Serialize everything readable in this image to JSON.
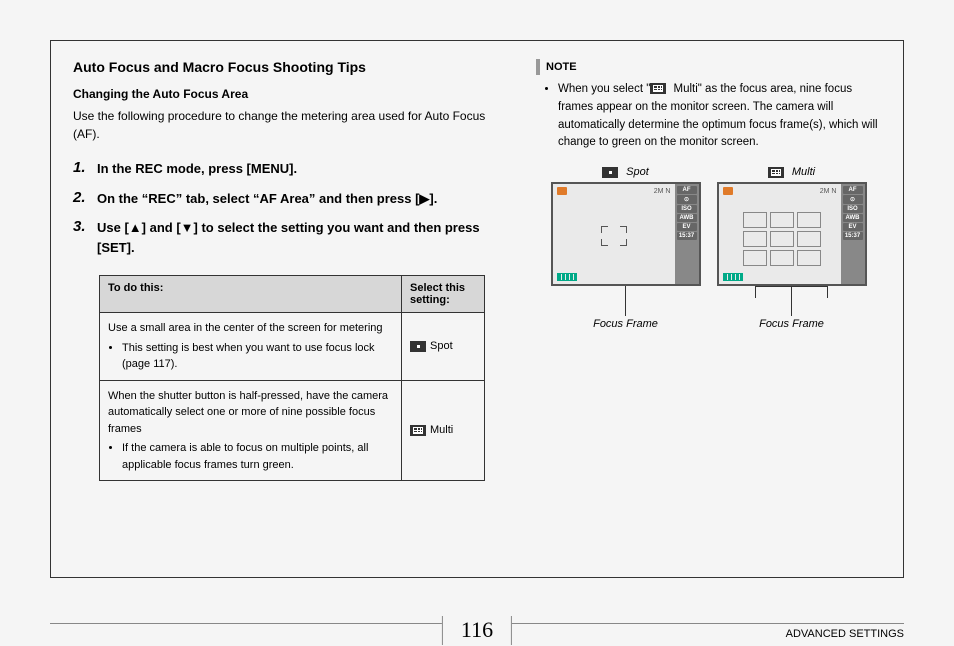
{
  "section_title": "Auto Focus and Macro Focus Shooting Tips",
  "sub_title": "Changing the Auto Focus Area",
  "intro": "Use the following procedure to change the metering area used for Auto Focus (AF).",
  "steps": [
    {
      "num": "1.",
      "txt": "In the REC mode, press [MENU]."
    },
    {
      "num": "2.",
      "txt": "On the “REC” tab, select “AF Area” and then press [▶]."
    },
    {
      "num": "3.",
      "txt": "Use [▲] and [▼] to select the setting you want and then press [SET]."
    }
  ],
  "table": {
    "head_todo": "To do this:",
    "head_setting": "Select this setting:",
    "rows": [
      {
        "desc": "Use a small area in the center of the screen for metering",
        "bullet": "This setting is best when you want to use focus lock (page 117).",
        "setting": "Spot",
        "icon": "spot"
      },
      {
        "desc": "When the shutter button is half-pressed, have the camera automatically select one or more of nine possible focus frames",
        "bullet": "If the camera is able to focus on multiple points, all applicable focus frames turn green.",
        "setting": "Multi",
        "icon": "multi"
      }
    ]
  },
  "note": {
    "label": "NOTE",
    "text": "When you select “ Multi” as the focus area, nine focus frames appear on the monitor screen. The camera will automatically determine the optimum focus frame(s), which will change to green on the monitor screen."
  },
  "diagrams": {
    "spot_label": "Spot",
    "multi_label": "Multi",
    "caption": "Focus Frame",
    "lcd": {
      "top_right": "2M N",
      "sidebar": [
        "AF",
        "⊙",
        "ISO",
        "AWB",
        "EV",
        "15:37"
      ],
      "battery_color": "#0a8",
      "rec_color": "#e07b2a"
    }
  },
  "footer": {
    "page": "116",
    "right": "ADVANCED SETTINGS"
  },
  "colors": {
    "page_bg": "#f5f5f5",
    "border": "#333333",
    "table_header_bg": "#d7d7d7",
    "note_bar": "#999999",
    "lcd_bg": "#eaeaea",
    "lcd_sidebar_bg": "#888888"
  }
}
